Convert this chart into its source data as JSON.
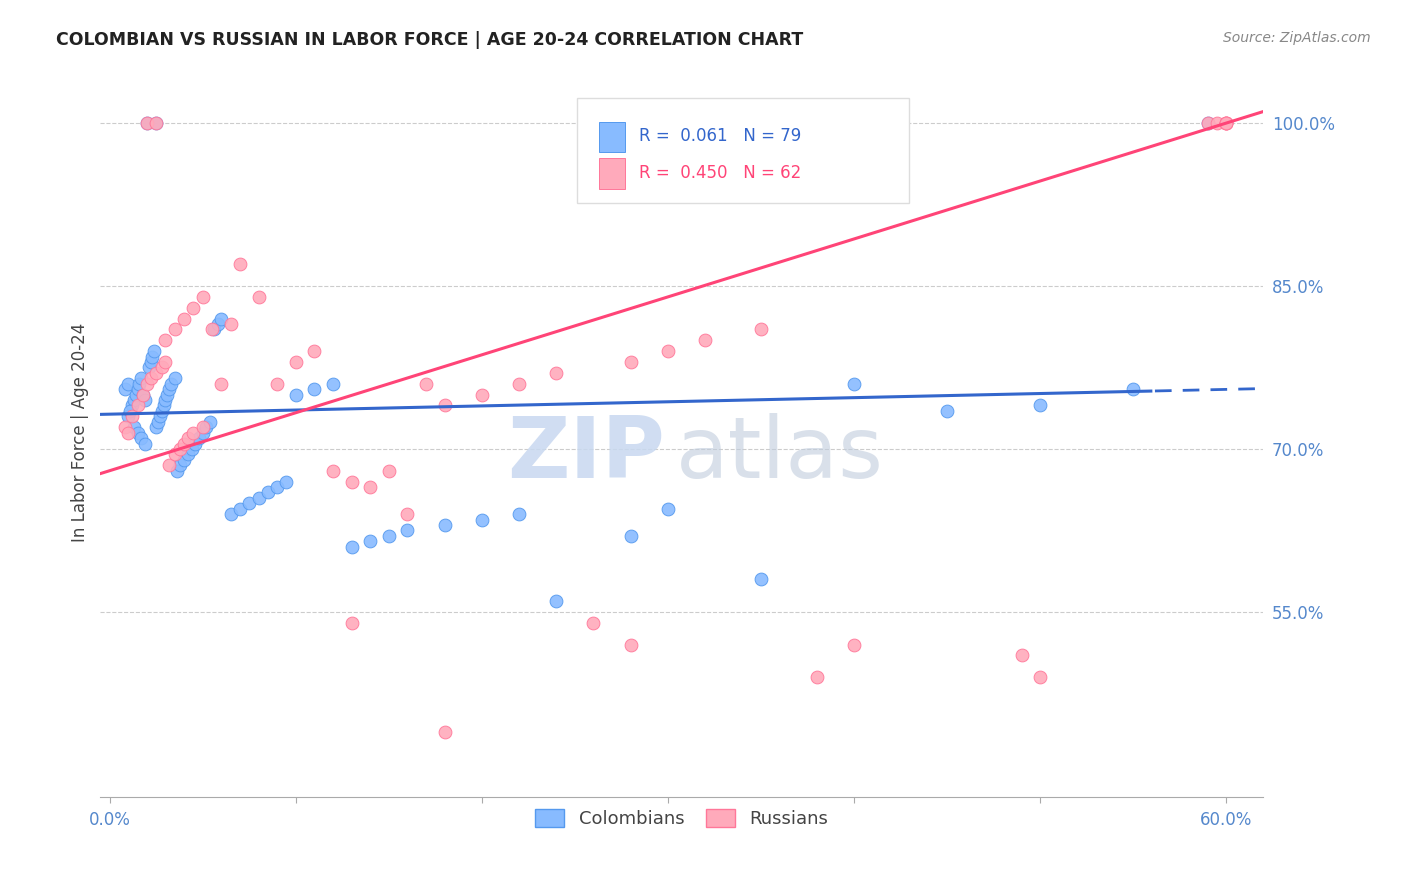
{
  "title": "COLOMBIAN VS RUSSIAN IN LABOR FORCE | AGE 20-24 CORRELATION CHART",
  "source": "Source: ZipAtlas.com",
  "ylabel": "In Labor Force | Age 20-24",
  "xlim": [
    -0.005,
    0.62
  ],
  "ylim": [
    0.38,
    1.05
  ],
  "xtick_vals": [
    0.0,
    0.1,
    0.2,
    0.3,
    0.4,
    0.5,
    0.6
  ],
  "xtick_labels": [
    "0.0%",
    "",
    "",
    "",
    "",
    "",
    "60.0%"
  ],
  "ytick_vals": [
    0.55,
    0.7,
    0.85,
    1.0
  ],
  "ytick_labels": [
    "55.0%",
    "70.0%",
    "85.0%",
    "100.0%"
  ],
  "r_colombian": 0.061,
  "n_colombian": 79,
  "r_russian": 0.45,
  "n_russian": 62,
  "blue_scatter_color": "#88BBFF",
  "blue_edge_color": "#5599EE",
  "pink_scatter_color": "#FFAABB",
  "pink_edge_color": "#FF7799",
  "blue_line_color": "#3366CC",
  "pink_line_color": "#FF4477",
  "grid_color": "#CCCCCC",
  "watermark_zip_color": "#C8D8F0",
  "watermark_atlas_color": "#C0CCDD",
  "title_color": "#222222",
  "source_color": "#888888",
  "axis_tick_color": "#5588CC",
  "legend_box_color": "#DDDDDD",
  "bottom_legend_text_color": "#444444"
}
